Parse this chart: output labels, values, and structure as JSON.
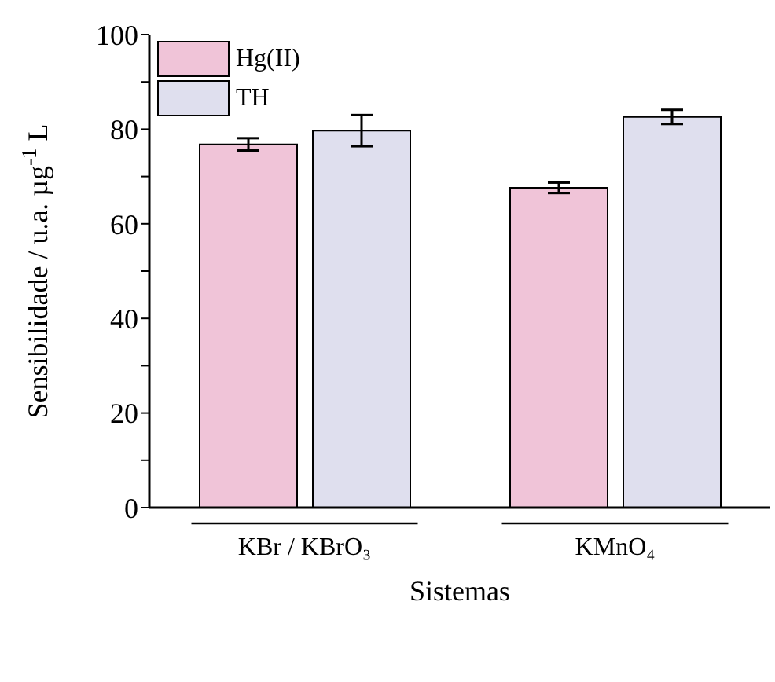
{
  "chart_data": {
    "type": "bar",
    "xlabel": "Sistemas",
    "ylabel": "Sensibilidade / u.a. µg$^{-1}$ L",
    "categories": [
      "KBr / KBrO₃",
      "KMnO₄"
    ],
    "series": [
      {
        "name": "Hg(II)",
        "color": "#f0c4d8",
        "values": [
          76.8,
          67.6
        ],
        "errors": [
          1.3,
          1.1
        ]
      },
      {
        "name": "TH",
        "color": "#dfdfee",
        "values": [
          79.7,
          82.6
        ],
        "errors": [
          3.3,
          1.5
        ]
      }
    ],
    "ylim": [
      0,
      100
    ],
    "yticks": [
      0,
      {
        "value": 10,
        "label": null
      },
      20,
      {
        "value": 30,
        "label": null
      },
      40,
      {
        "value": 50,
        "label": null
      },
      60,
      {
        "value": 70,
        "label": null
      },
      80,
      {
        "value": 90,
        "label": null
      },
      100
    ],
    "legend": "top left"
  }
}
